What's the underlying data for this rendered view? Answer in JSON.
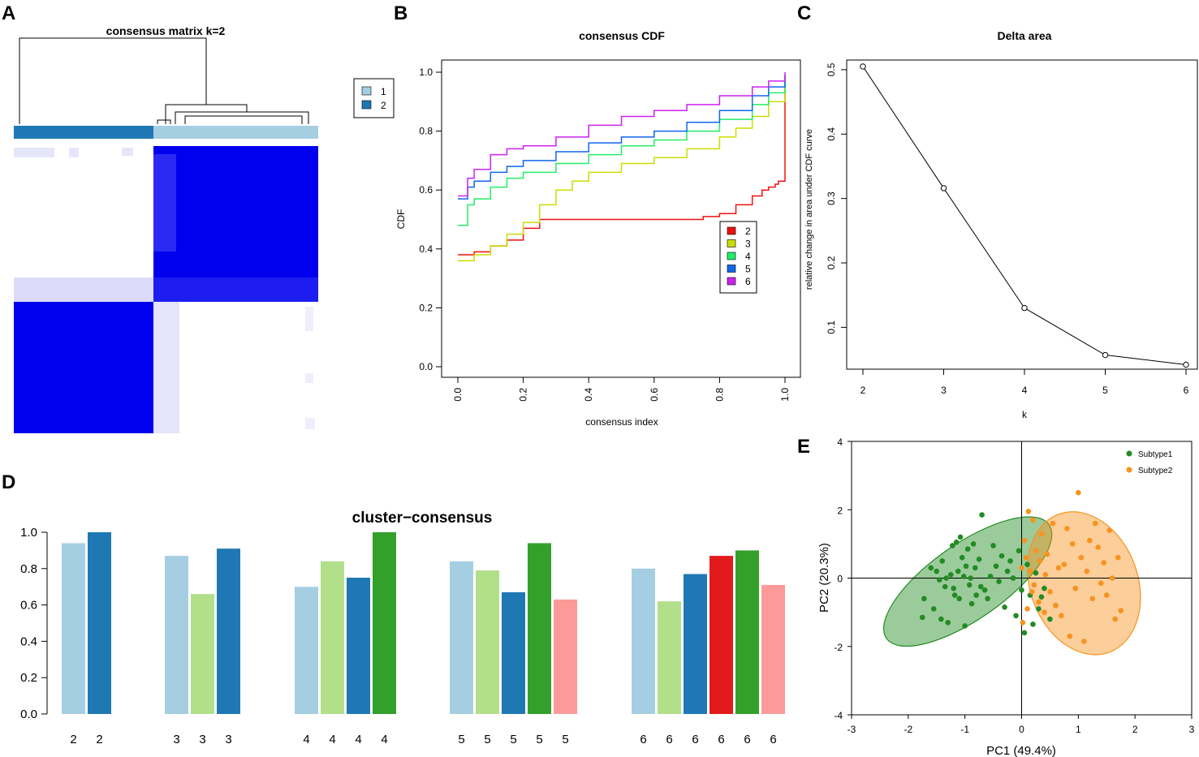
{
  "panel_labels": [
    "A",
    "B",
    "C",
    "D",
    "E"
  ],
  "chart_data": [
    {
      "id": "A",
      "type": "heatmap",
      "title": "consensus matrix k=2",
      "legend": [
        "1",
        "2"
      ],
      "colors": {
        "cluster1": "#a6cee3",
        "cluster2": "#1f78b4",
        "high": "#0000ee",
        "low": "#ffffff",
        "mid": "#dcdcfa"
      },
      "blocks": [
        {
          "cluster": "2",
          "consensus": 1.0
        },
        {
          "cluster": "1",
          "consensus": 1.0
        }
      ]
    },
    {
      "id": "B",
      "type": "line",
      "title": "consensus CDF",
      "xlabel": "consensus index",
      "ylabel": "CDF",
      "xlim": [
        0,
        1
      ],
      "ylim": [
        0,
        1
      ],
      "xticks": [
        "0.0",
        "0.2",
        "0.4",
        "0.6",
        "0.8",
        "1.0"
      ],
      "yticks": [
        "0.0",
        "0.2",
        "0.4",
        "0.6",
        "0.8",
        "1.0"
      ],
      "legend": [
        "2",
        "3",
        "4",
        "5",
        "6"
      ],
      "series": [
        {
          "name": "2",
          "color": "#ee1111",
          "x": [
            0,
            0.02,
            0.05,
            0.1,
            0.15,
            0.2,
            0.25,
            0.3,
            0.5,
            0.7,
            0.75,
            0.8,
            0.85,
            0.9,
            0.93,
            0.95,
            0.97,
            0.98,
            0.985,
            1.0
          ],
          "y": [
            0.38,
            0.38,
            0.39,
            0.41,
            0.43,
            0.47,
            0.5,
            0.5,
            0.5,
            0.5,
            0.51,
            0.52,
            0.55,
            0.58,
            0.6,
            0.61,
            0.62,
            0.63,
            0.63,
            0.99
          ]
        },
        {
          "name": "3",
          "color": "#ccdd00",
          "x": [
            0,
            0.02,
            0.05,
            0.1,
            0.15,
            0.2,
            0.25,
            0.3,
            0.35,
            0.4,
            0.5,
            0.6,
            0.7,
            0.8,
            0.85,
            0.9,
            0.95,
            1.0
          ],
          "y": [
            0.36,
            0.36,
            0.38,
            0.41,
            0.45,
            0.49,
            0.55,
            0.6,
            0.63,
            0.66,
            0.69,
            0.71,
            0.74,
            0.78,
            0.81,
            0.85,
            0.9,
            0.99
          ]
        },
        {
          "name": "4",
          "color": "#22ee66",
          "x": [
            0,
            0.01,
            0.03,
            0.05,
            0.1,
            0.15,
            0.2,
            0.3,
            0.4,
            0.5,
            0.6,
            0.7,
            0.8,
            0.9,
            0.95,
            1.0
          ],
          "y": [
            0.48,
            0.48,
            0.55,
            0.57,
            0.61,
            0.64,
            0.66,
            0.69,
            0.72,
            0.75,
            0.77,
            0.8,
            0.84,
            0.89,
            0.93,
            0.99
          ]
        },
        {
          "name": "5",
          "color": "#1166ee",
          "x": [
            0,
            0.01,
            0.03,
            0.05,
            0.1,
            0.15,
            0.2,
            0.3,
            0.4,
            0.5,
            0.6,
            0.7,
            0.8,
            0.9,
            0.95,
            1.0
          ],
          "y": [
            0.57,
            0.57,
            0.61,
            0.63,
            0.66,
            0.68,
            0.7,
            0.73,
            0.76,
            0.78,
            0.8,
            0.83,
            0.87,
            0.92,
            0.95,
            0.99
          ]
        },
        {
          "name": "6",
          "color": "#cc22ee",
          "x": [
            0,
            0.01,
            0.03,
            0.05,
            0.1,
            0.15,
            0.2,
            0.3,
            0.4,
            0.5,
            0.6,
            0.7,
            0.8,
            0.9,
            0.95,
            1.0
          ],
          "y": [
            0.58,
            0.58,
            0.64,
            0.67,
            0.72,
            0.74,
            0.75,
            0.78,
            0.82,
            0.85,
            0.87,
            0.89,
            0.92,
            0.95,
            0.97,
            1.0
          ]
        }
      ]
    },
    {
      "id": "C",
      "type": "line",
      "title": "Delta area",
      "xlabel": "k",
      "ylabel": "relative change in area under CDF curve",
      "xticks": [
        "2",
        "3",
        "4",
        "5",
        "6"
      ],
      "yticks": [
        "0.1",
        "0.2",
        "0.3",
        "0.4",
        "0.5"
      ],
      "xlim": [
        2,
        6
      ],
      "ylim": [
        0.035,
        0.515
      ],
      "x": [
        2,
        3,
        4,
        5,
        6
      ],
      "y": [
        0.505,
        0.316,
        0.13,
        0.057,
        0.042
      ]
    },
    {
      "id": "D",
      "type": "bar",
      "title": "cluster−consensus",
      "ylim": [
        0,
        1
      ],
      "yticks": [
        "0.0",
        "0.2",
        "0.4",
        "0.6",
        "0.8",
        "1.0"
      ],
      "groups": [
        {
          "k": "2",
          "bars": [
            {
              "label": "2",
              "value": 0.94,
              "color": "#a6cee3"
            },
            {
              "label": "2",
              "value": 1.0,
              "color": "#1f78b4"
            }
          ]
        },
        {
          "k": "3",
          "bars": [
            {
              "label": "3",
              "value": 0.87,
              "color": "#a6cee3"
            },
            {
              "label": "3",
              "value": 0.66,
              "color": "#b2df8a"
            },
            {
              "label": "3",
              "value": 0.91,
              "color": "#1f78b4"
            }
          ]
        },
        {
          "k": "4",
          "bars": [
            {
              "label": "4",
              "value": 0.7,
              "color": "#a6cee3"
            },
            {
              "label": "4",
              "value": 0.84,
              "color": "#b2df8a"
            },
            {
              "label": "4",
              "value": 0.75,
              "color": "#1f78b4"
            },
            {
              "label": "4",
              "value": 1.0,
              "color": "#33a02c"
            }
          ]
        },
        {
          "k": "5",
          "bars": [
            {
              "label": "5",
              "value": 0.84,
              "color": "#a6cee3"
            },
            {
              "label": "5",
              "value": 0.79,
              "color": "#b2df8a"
            },
            {
              "label": "5",
              "value": 0.67,
              "color": "#1f78b4"
            },
            {
              "label": "5",
              "value": 0.94,
              "color": "#33a02c"
            },
            {
              "label": "5",
              "value": 0.63,
              "color": "#fb9a99"
            }
          ]
        },
        {
          "k": "6",
          "bars": [
            {
              "label": "6",
              "value": 0.8,
              "color": "#a6cee3"
            },
            {
              "label": "6",
              "value": 0.62,
              "color": "#b2df8a"
            },
            {
              "label": "6",
              "value": 0.77,
              "color": "#1f78b4"
            },
            {
              "label": "6",
              "value": 0.87,
              "color": "#e31a1c"
            },
            {
              "label": "6",
              "value": 0.9,
              "color": "#33a02c"
            },
            {
              "label": "6",
              "value": 0.71,
              "color": "#fb9a99"
            }
          ]
        }
      ]
    },
    {
      "id": "E",
      "type": "scatter",
      "xlabel": "PC1 (49.4%)",
      "ylabel": "PC2 (20.3%)",
      "xlim": [
        -3,
        3
      ],
      "ylim": [
        -4,
        4
      ],
      "xticks": [
        "-3",
        "-2",
        "-1",
        "0",
        "1",
        "2",
        "3"
      ],
      "yticks": [
        "-4",
        "-2",
        "0",
        "2",
        "4"
      ],
      "legend": [
        "Subtype1",
        "Subtype2"
      ],
      "series": [
        {
          "name": "Subtype1",
          "color": "#228b22",
          "ellipse": {
            "cx": -0.95,
            "cy": -0.1,
            "rx": 1.75,
            "ry": 1.1,
            "angle_deg": -35
          },
          "x": [
            -1.72,
            -1.75,
            -1.6,
            -1.55,
            -1.5,
            -1.45,
            -1.42,
            -1.4,
            -1.35,
            -1.33,
            -1.3,
            -1.25,
            -1.22,
            -1.2,
            -1.18,
            -1.15,
            -1.12,
            -1.1,
            -1.08,
            -1.05,
            -1.02,
            -1.0,
            -0.98,
            -0.95,
            -0.92,
            -0.9,
            -0.88,
            -0.85,
            -0.82,
            -0.8,
            -0.75,
            -0.72,
            -0.7,
            -0.65,
            -0.6,
            -0.55,
            -0.5,
            -0.45,
            -0.4,
            -0.35,
            -0.3,
            -0.25,
            -0.2,
            -0.15,
            -0.1,
            -0.05,
            0.0,
            0.05,
            0.1,
            0.15,
            0.2,
            0.25,
            0.3,
            0.35,
            0.4,
            0.5,
            0.6
          ],
          "y": [
            -0.6,
            -1.15,
            0.3,
            -0.9,
            0.2,
            -0.05,
            -1.2,
            0.5,
            -0.25,
            0.0,
            -1.3,
            0.1,
            0.95,
            -0.3,
            -0.5,
            1.05,
            0.2,
            -0.6,
            1.2,
            0.6,
            0.05,
            -1.4,
            0.35,
            0.85,
            -0.2,
            0.0,
            -0.75,
            1.0,
            0.3,
            -0.5,
            0.55,
            -0.25,
            1.85,
            -0.35,
            -0.6,
            0.05,
            0.95,
            0.35,
            -0.1,
            0.65,
            -0.85,
            0.2,
            0.5,
            0.0,
            -1.1,
            0.8,
            -0.35,
            -1.6,
            0.4,
            -0.5,
            -1.35,
            0.15,
            -0.9,
            -0.55,
            -0.3,
            -1.2,
            -0.8
          ]
        },
        {
          "name": "Subtype2",
          "color": "#f7931e",
          "ellipse": {
            "cx": 1.1,
            "cy": -0.15,
            "rx": 0.95,
            "ry": 2.15,
            "angle_deg": -20
          },
          "x": [
            0.0,
            0.02,
            0.05,
            0.08,
            0.1,
            0.12,
            0.15,
            0.18,
            0.2,
            0.22,
            0.25,
            0.3,
            0.32,
            0.35,
            0.4,
            0.42,
            0.45,
            0.5,
            0.55,
            0.6,
            0.65,
            0.7,
            0.75,
            0.8,
            0.85,
            0.9,
            0.95,
            1.0,
            1.05,
            1.1,
            1.15,
            1.2,
            1.25,
            1.3,
            1.35,
            1.4,
            1.45,
            1.5,
            1.55,
            1.6,
            1.65,
            1.7,
            1.75
          ],
          "y": [
            0.3,
            -1.3,
            1.1,
            0.6,
            -0.9,
            1.95,
            0.2,
            -0.4,
            1.7,
            -0.2,
            0.8,
            -0.7,
            0.5,
            1.3,
            -1.0,
            0.1,
            0.7,
            -0.4,
            1.6,
            -0.8,
            0.3,
            -1.1,
            0.4,
            1.45,
            -1.7,
            1.0,
            -0.3,
            2.5,
            0.6,
            -1.85,
            0.2,
            1.1,
            -0.6,
            1.6,
            0.9,
            -0.15,
            0.45,
            -0.5,
            1.4,
            0.0,
            -1.2,
            0.6,
            -0.95
          ]
        }
      ]
    }
  ]
}
